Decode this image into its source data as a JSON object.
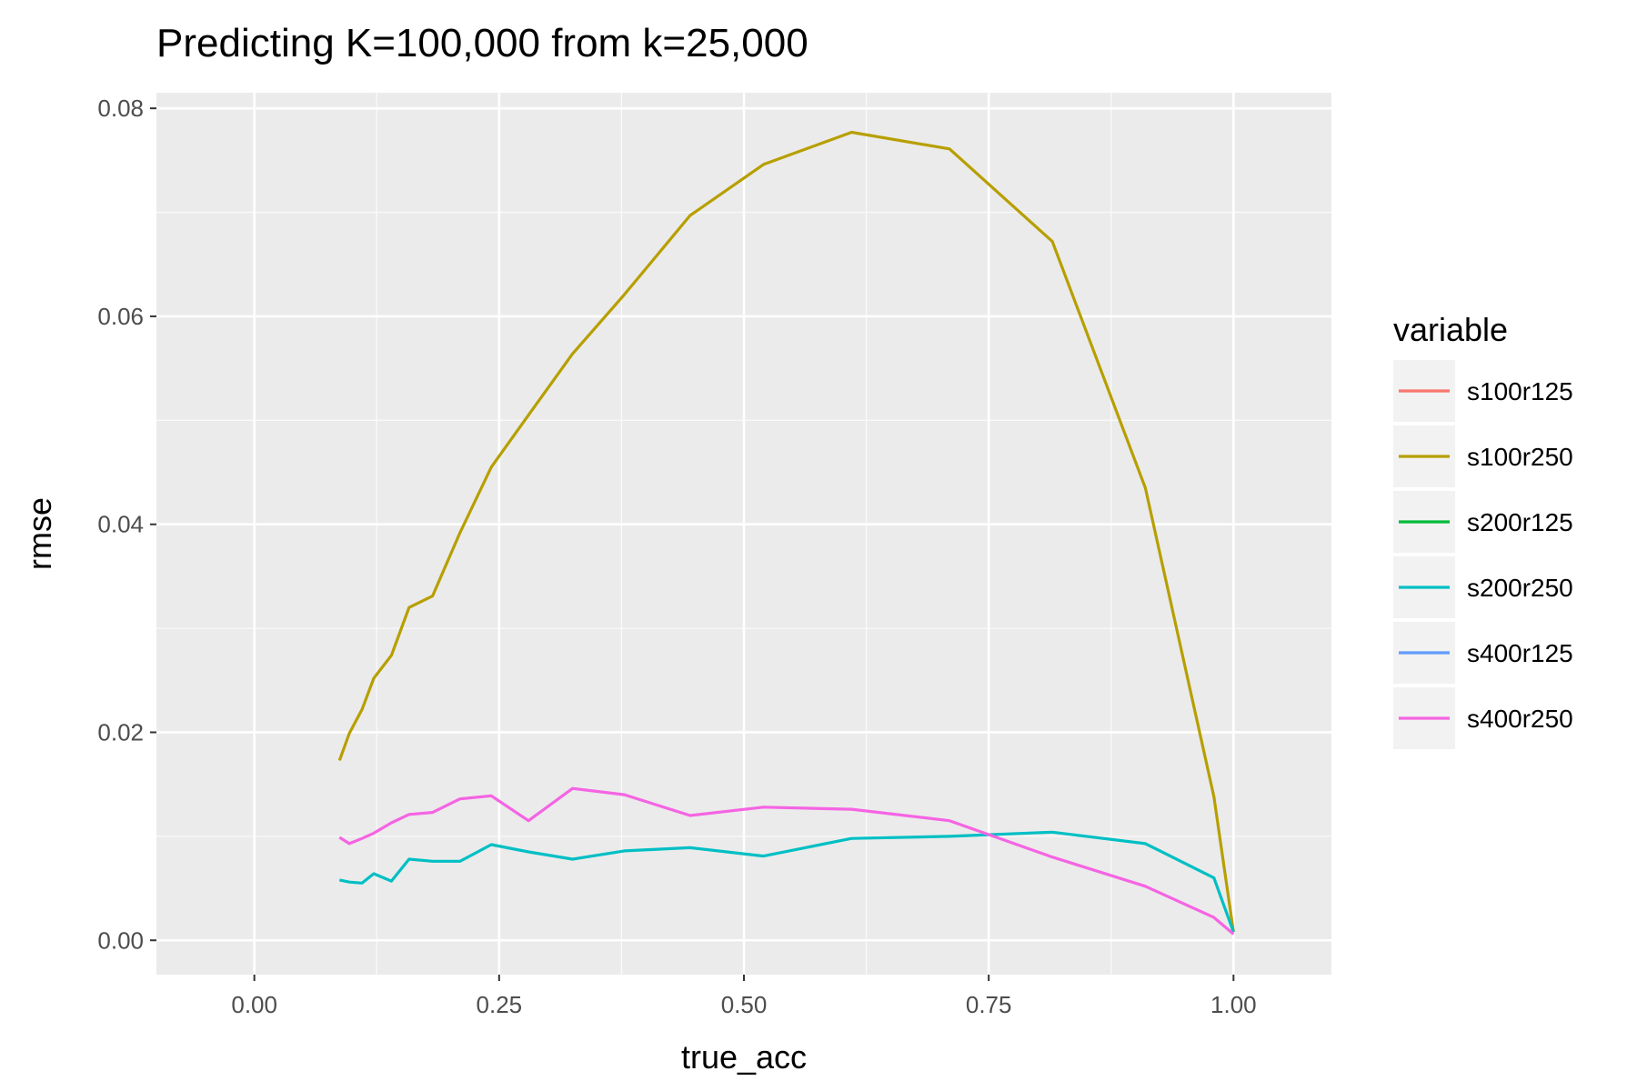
{
  "chart_data": {
    "type": "line",
    "title": "Predicting K=100,000 from k=25,000",
    "xlabel": "true_acc",
    "ylabel": "rmse",
    "xlim": [
      -0.1,
      1.1
    ],
    "ylim": [
      -0.0033,
      0.0815
    ],
    "x_ticks": [
      0.0,
      0.25,
      0.5,
      0.75,
      1.0
    ],
    "x_tick_labels": [
      "0.00",
      "0.25",
      "0.50",
      "0.75",
      "1.00"
    ],
    "y_ticks": [
      0.0,
      0.02,
      0.04,
      0.06,
      0.08
    ],
    "y_tick_labels": [
      "0.00",
      "0.02",
      "0.04",
      "0.06",
      "0.08"
    ],
    "grid": true,
    "panel_background": "#ebebeb",
    "legend_title": "variable",
    "legend_position": "right",
    "series": [
      {
        "name": "s100r125",
        "color": "#f8766d",
        "x": [],
        "y": []
      },
      {
        "name": "s100r250",
        "color": "#b79f00",
        "x": [
          0.087,
          0.097,
          0.11,
          0.122,
          0.14,
          0.158,
          0.182,
          0.21,
          0.242,
          0.28,
          0.325,
          0.378,
          0.445,
          0.52,
          0.61,
          0.71,
          0.815,
          0.91,
          0.98,
          1.0
        ],
        "y": [
          0.0173,
          0.0199,
          0.0222,
          0.0252,
          0.0274,
          0.032,
          0.0331,
          0.0392,
          0.0455,
          0.0505,
          0.0564,
          0.0621,
          0.0697,
          0.0746,
          0.0777,
          0.0761,
          0.0672,
          0.0435,
          0.0138,
          0.0008
        ]
      },
      {
        "name": "s200r125",
        "color": "#00ba38",
        "x": [],
        "y": []
      },
      {
        "name": "s200r250",
        "color": "#00bfc4",
        "x": [
          0.087,
          0.097,
          0.11,
          0.122,
          0.14,
          0.158,
          0.182,
          0.21,
          0.242,
          0.28,
          0.325,
          0.378,
          0.445,
          0.52,
          0.61,
          0.71,
          0.815,
          0.91,
          0.98,
          1.0
        ],
        "y": [
          0.0058,
          0.0056,
          0.0055,
          0.0064,
          0.0057,
          0.0078,
          0.0076,
          0.0076,
          0.0092,
          0.0085,
          0.0078,
          0.0086,
          0.0089,
          0.0081,
          0.0098,
          0.01,
          0.0104,
          0.0093,
          0.006,
          0.0008
        ]
      },
      {
        "name": "s400r125",
        "color": "#619cff",
        "x": [],
        "y": []
      },
      {
        "name": "s400r250",
        "color": "#f564e3",
        "x": [
          0.087,
          0.097,
          0.11,
          0.122,
          0.14,
          0.158,
          0.182,
          0.21,
          0.242,
          0.28,
          0.325,
          0.378,
          0.445,
          0.52,
          0.61,
          0.71,
          0.815,
          0.91,
          0.98,
          1.0
        ],
        "y": [
          0.0099,
          0.0093,
          0.0098,
          0.0103,
          0.0113,
          0.0121,
          0.0123,
          0.0136,
          0.0139,
          0.0115,
          0.0146,
          0.014,
          0.012,
          0.0128,
          0.0126,
          0.0115,
          0.008,
          0.0052,
          0.0022,
          0.0006
        ]
      }
    ]
  }
}
